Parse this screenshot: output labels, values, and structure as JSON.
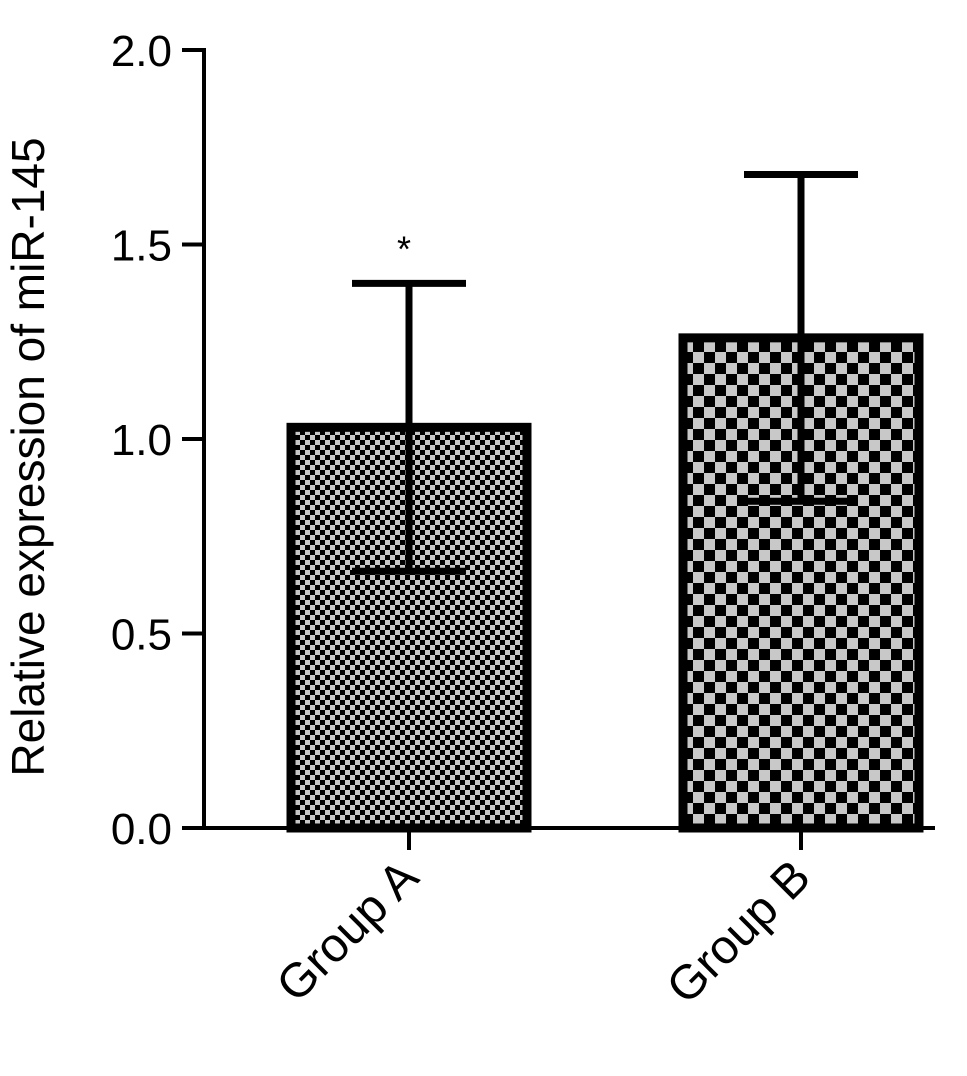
{
  "chart_data": {
    "type": "bar",
    "categories": [
      "Group A",
      "Group B"
    ],
    "series": [
      {
        "values": [
          1.03,
          1.26
        ],
        "error_plus": [
          0.37,
          0.42
        ],
        "error_minus": [
          0.37,
          0.42
        ],
        "fill_patterns": [
          "fine-checkerboard",
          "coarse-checkerboard"
        ]
      }
    ],
    "title": "",
    "xlabel": "",
    "ylabel": "Relative expression of miR-145",
    "ylim": [
      0,
      2.0
    ],
    "yticks": [
      "0.0",
      "0.5",
      "1.0",
      "1.5",
      "2.0"
    ],
    "annotations": [
      {
        "category": "Group A",
        "text": "*"
      }
    ],
    "grid": false,
    "legend": "none",
    "colors": {
      "bar_stroke": "#000000",
      "pattern_dark": "#000000",
      "pattern_light": "#c8c8c8"
    }
  }
}
